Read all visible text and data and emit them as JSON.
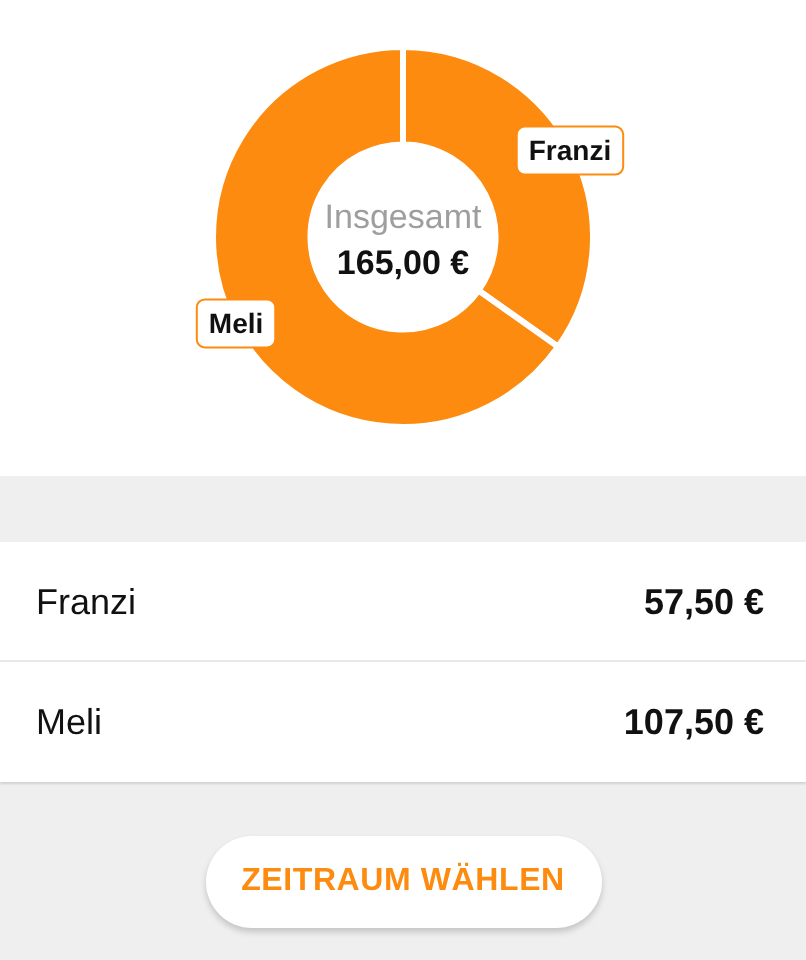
{
  "chart_data": [
    {
      "type": "donut",
      "categories": [
        "Franzi",
        "Meli"
      ],
      "values": [
        34.8,
        65.2
      ],
      "colors": [
        "#fd8b10",
        "#fd8b10"
      ],
      "annotations": [
        "Insgesamt",
        "165,00 €"
      ]
    },
    {
      "type": "other",
      "annotations": [
        "Franzi",
        "57,50 €",
        "Meli",
        "107,50 €",
        "ZEITRAUM WÄHLEN"
      ]
    }
  ]
}
